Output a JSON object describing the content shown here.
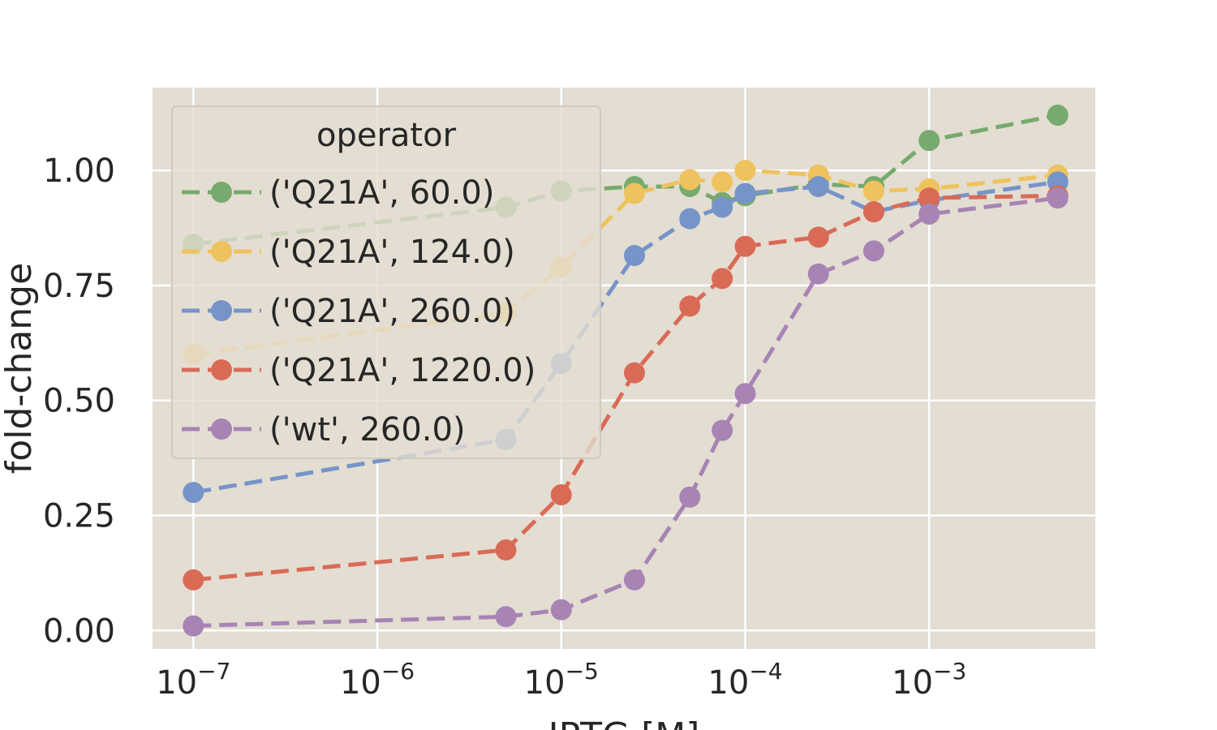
{
  "chart_data": {
    "type": "line",
    "xscale": "log",
    "xlabel": "IPTG [M]",
    "ylabel": "fold-change",
    "xlim": [
      6e-08,
      0.008
    ],
    "ylim": [
      -0.04,
      1.18
    ],
    "xticks": [
      {
        "value": 1e-07,
        "base": "10",
        "exp": "−7"
      },
      {
        "value": 1e-06,
        "base": "10",
        "exp": "−6"
      },
      {
        "value": 1e-05,
        "base": "10",
        "exp": "−5"
      },
      {
        "value": 0.0001,
        "base": "10",
        "exp": "−4"
      },
      {
        "value": 0.001,
        "base": "10",
        "exp": "−3"
      }
    ],
    "yticks": [
      {
        "value": 0.0,
        "label": "0.00"
      },
      {
        "value": 0.25,
        "label": "0.25"
      },
      {
        "value": 0.5,
        "label": "0.50"
      },
      {
        "value": 0.75,
        "label": "0.75"
      },
      {
        "value": 1.0,
        "label": "1.00"
      }
    ],
    "grid": true,
    "legend": {
      "title": "operator",
      "placement": "upper-left"
    },
    "x": [
      1e-07,
      5e-06,
      1e-05,
      2.5e-05,
      5e-05,
      7.5e-05,
      0.0001,
      0.00025,
      0.0005,
      0.001,
      0.005
    ],
    "series": [
      {
        "name": "('Q21A', 60.0)",
        "color": "#77aa6e",
        "values": [
          0.84,
          0.92,
          0.955,
          0.965,
          0.965,
          0.93,
          0.945,
          0.97,
          0.965,
          1.065,
          1.12
        ]
      },
      {
        "name": "('Q21A', 124.0)",
        "color": "#eec35e",
        "values": [
          0.6,
          0.69,
          0.79,
          0.95,
          0.98,
          0.975,
          1.0,
          0.99,
          0.955,
          0.96,
          0.99
        ]
      },
      {
        "name": "('Q21A', 260.0)",
        "color": "#7694c8",
        "values": [
          0.3,
          0.415,
          0.58,
          0.815,
          0.895,
          0.92,
          0.95,
          0.965,
          0.91,
          0.935,
          0.975
        ]
      },
      {
        "name": "('Q21A', 1220.0)",
        "color": "#d96b56",
        "values": [
          0.11,
          0.175,
          0.295,
          0.56,
          0.705,
          0.765,
          0.835,
          0.855,
          0.91,
          0.94,
          0.945
        ]
      },
      {
        "name": "('wt', 260.0)",
        "color": "#a784b4",
        "values": [
          0.01,
          0.03,
          0.045,
          0.11,
          0.29,
          0.435,
          0.515,
          0.775,
          0.825,
          0.905,
          0.94
        ]
      }
    ]
  }
}
